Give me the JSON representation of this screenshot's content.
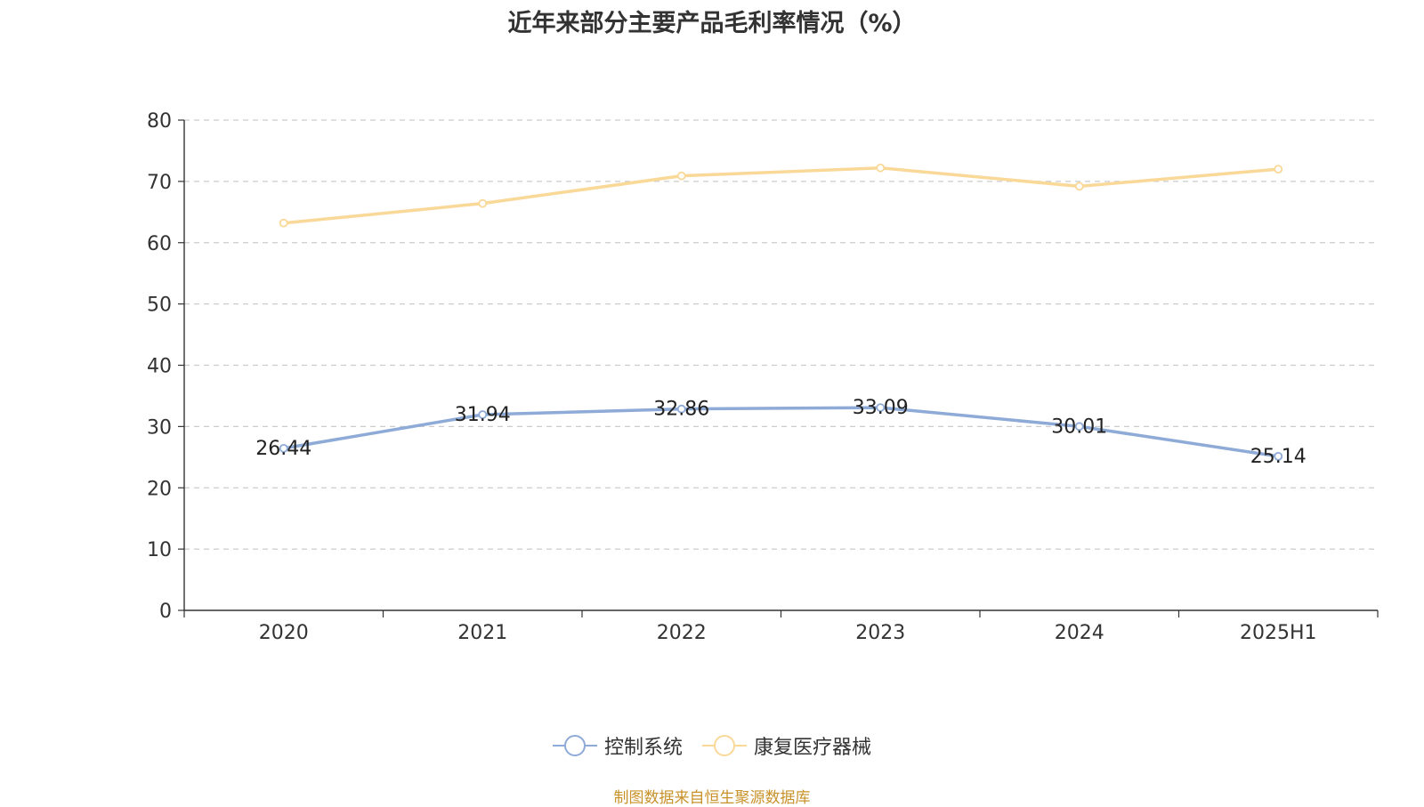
{
  "chart_data": {
    "type": "line",
    "title": "近年来部分主要产品毛利率情况（%）",
    "categories": [
      "2020",
      "2021",
      "2022",
      "2023",
      "2024",
      "2025H1"
    ],
    "ylim": [
      0,
      80
    ],
    "yticks": [
      0,
      10,
      20,
      30,
      40,
      50,
      60,
      70,
      80
    ],
    "grid": true,
    "legend_position": "bottom",
    "series": [
      {
        "name": "控制系统",
        "color": "#8eaad6",
        "values": [
          26.44,
          31.94,
          32.86,
          33.09,
          30.01,
          25.14
        ],
        "show_labels": true
      },
      {
        "name": "康复医疗器械",
        "color": "#f9d898",
        "values": [
          63.2,
          66.4,
          70.9,
          72.2,
          69.2,
          72.0
        ],
        "show_labels": false
      }
    ]
  },
  "footer": {
    "source": "制图数据来自恒生聚源数据库"
  }
}
